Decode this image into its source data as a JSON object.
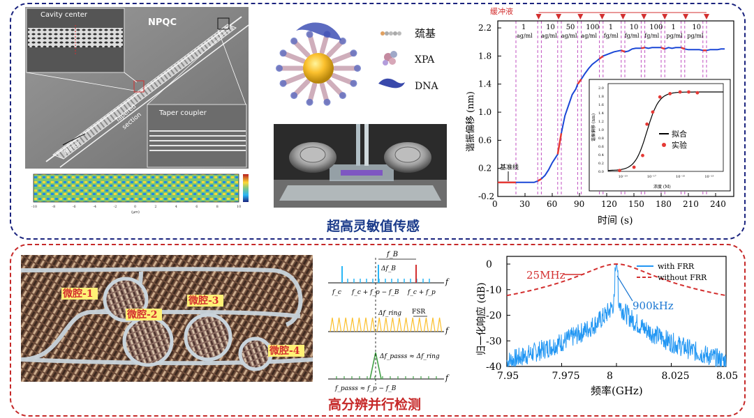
{
  "captions": {
    "top": "超高灵敏值传感",
    "bottom": "高分辨并行检测"
  },
  "sem_figure": {
    "title": "NPQC",
    "inset_top_left": "Cavity center",
    "inset_bottom_right": "Taper coupler",
    "labels": {
      "tapered": "Tapered",
      "section": "section",
      "mirror": "Mirror"
    },
    "field_map_ticks": [
      "-10",
      "-8",
      "-6",
      "-4",
      "-2",
      "0",
      "2",
      "4",
      "6",
      "8",
      "10"
    ],
    "field_map_xlabel": "(μm)"
  },
  "nanoparticle_figure": {
    "legend": [
      {
        "label": "巯基",
        "icon": "thiol-chain-icon"
      },
      {
        "label": "XPA",
        "icon": "xpa-protein-icon"
      },
      {
        "label": "DNA",
        "icon": "dna-strand-icon"
      }
    ]
  },
  "chart_data": [
    {
      "type": "line",
      "title": "",
      "xlabel": "时间 (s)",
      "ylabel": "谐振偏移 (nm)",
      "xlim": [
        0,
        260
      ],
      "ylim": [
        -0.2,
        2.3
      ],
      "xticks": [
        0,
        30,
        60,
        90,
        120,
        150,
        180,
        210,
        240
      ],
      "yticks": [
        -0.2,
        0.2,
        0.6,
        1.0,
        1.4,
        1.8,
        2.2
      ],
      "annotations": {
        "buffer_label": "缓冲液",
        "baseline_label": "基准线",
        "concentration_labels": [
          {
            "value": "1",
            "unit": "ag/ml"
          },
          {
            "value": "10",
            "unit": "ag/ml"
          },
          {
            "value": "50",
            "unit": "ag/ml"
          },
          {
            "value": "100",
            "unit": "ag/ml"
          },
          {
            "value": "1",
            "unit": "fg/ml"
          },
          {
            "value": "10",
            "unit": "fg/ml"
          },
          {
            "value": "100",
            "unit": "fg/ml"
          },
          {
            "value": "1",
            "unit": "pg/ml"
          },
          {
            "value": "10",
            "unit": "pg/ml"
          }
        ],
        "arrow_times": [
          45,
          67,
          91,
          115,
          138,
          161,
          184,
          207,
          230
        ],
        "dashed_lines": [
          20,
          44,
          48,
          66,
          70,
          88,
          92,
          112,
          116,
          136,
          140,
          158,
          162,
          180,
          184,
          202,
          206,
          226,
          230
        ]
      },
      "series": [
        {
          "name": "",
          "x": [
            0,
            10,
            20,
            30,
            40,
            44,
            48,
            52,
            56,
            60,
            64,
            66,
            70,
            74,
            78,
            82,
            86,
            88,
            92,
            96,
            100,
            104,
            108,
            112,
            116,
            120,
            124,
            128,
            132,
            136,
            140,
            144,
            148,
            152,
            156,
            158,
            162,
            166,
            170,
            174,
            178,
            180,
            184,
            188,
            192,
            196,
            200,
            202,
            206,
            210,
            214,
            218,
            222,
            226,
            230,
            234,
            238,
            242,
            246,
            250
          ],
          "y": [
            0.0,
            0.0,
            0.0,
            0.0,
            0.0,
            0.02,
            0.05,
            0.1,
            0.18,
            0.28,
            0.36,
            0.4,
            0.7,
            0.95,
            1.1,
            1.25,
            1.33,
            1.4,
            1.47,
            1.55,
            1.62,
            1.68,
            1.72,
            1.76,
            1.8,
            1.82,
            1.84,
            1.86,
            1.87,
            1.88,
            1.86,
            1.87,
            1.9,
            1.91,
            1.91,
            1.91,
            1.92,
            1.91,
            1.92,
            1.92,
            1.92,
            1.92,
            1.9,
            1.92,
            1.91,
            1.92,
            1.92,
            1.92,
            1.9,
            1.89,
            1.89,
            1.89,
            1.89,
            1.88,
            1.88,
            1.89,
            1.89,
            1.89,
            1.9,
            1.9
          ]
        }
      ],
      "inset": {
        "type": "scatter",
        "ylabel": "谐振偏移 (nm)",
        "xlabel": "浓度 (M)",
        "yticks": [
          "0.0",
          "0.2",
          "0.4",
          "0.6",
          "0.8",
          "1.0",
          "1.2",
          "1.4",
          "1.6",
          "1.8",
          "2.0"
        ],
        "xticks": [
          "10⁻¹⁹",
          "10⁻¹⁷",
          "10⁻¹⁵",
          "10⁻¹³"
        ],
        "legend": [
          {
            "label": "拟合",
            "style": "line",
            "color": "#000000"
          },
          {
            "label": "实验",
            "style": "dot",
            "color": "#e53935"
          }
        ],
        "points_log10_conc": [
          -19.2,
          -18.2,
          -17.6,
          -17.3,
          -16.9,
          -16.4,
          -15.7,
          -15.0,
          -14.4,
          -13.8
        ],
        "points_shift": [
          0.02,
          0.1,
          0.38,
          1.13,
          1.42,
          1.78,
          1.86,
          1.9,
          1.9,
          1.88
        ]
      }
    },
    {
      "type": "line",
      "title": "",
      "xlabel": "频率(GHz)",
      "ylabel": "归一化响应 (dB)",
      "xlim": [
        7.95,
        8.05
      ],
      "ylim": [
        -40,
        3
      ],
      "xticks": [
        7.95,
        7.975,
        8.0,
        8.025,
        8.05
      ],
      "xtick_labels": [
        "7.95",
        "7.975",
        "8",
        "8.025",
        "8.05"
      ],
      "yticks": [
        0,
        -10,
        -20,
        -30,
        -40
      ],
      "legend_position": "top-right",
      "annotations": [
        {
          "text": "25MHz",
          "color": "#d32f2f"
        },
        {
          "text": "900kHz",
          "color": "#1976d2"
        }
      ],
      "series": [
        {
          "name": "with FRR",
          "color": "#2196f3",
          "style": "solid"
        },
        {
          "name": "without FRR",
          "color": "#d32f2f",
          "style": "dashed"
        }
      ]
    }
  ],
  "chip_figure": {
    "cavity_labels": [
      "微腔-1",
      "微腔-2",
      "微腔-3",
      "微腔-4"
    ]
  },
  "spectrum_schematic": {
    "rows": [
      {
        "labels": [
          "f_B",
          "Δf_B",
          "f_c",
          "f_c + f_p − f_B",
          "f_c + f_p"
        ]
      },
      {
        "labels": [
          "Δf_ring",
          "FSR"
        ]
      },
      {
        "labels": [
          "Δf_passs ≈ Δf_ring",
          "f_passs ≈ f_p − f_B"
        ]
      }
    ],
    "axis_label": "f"
  }
}
